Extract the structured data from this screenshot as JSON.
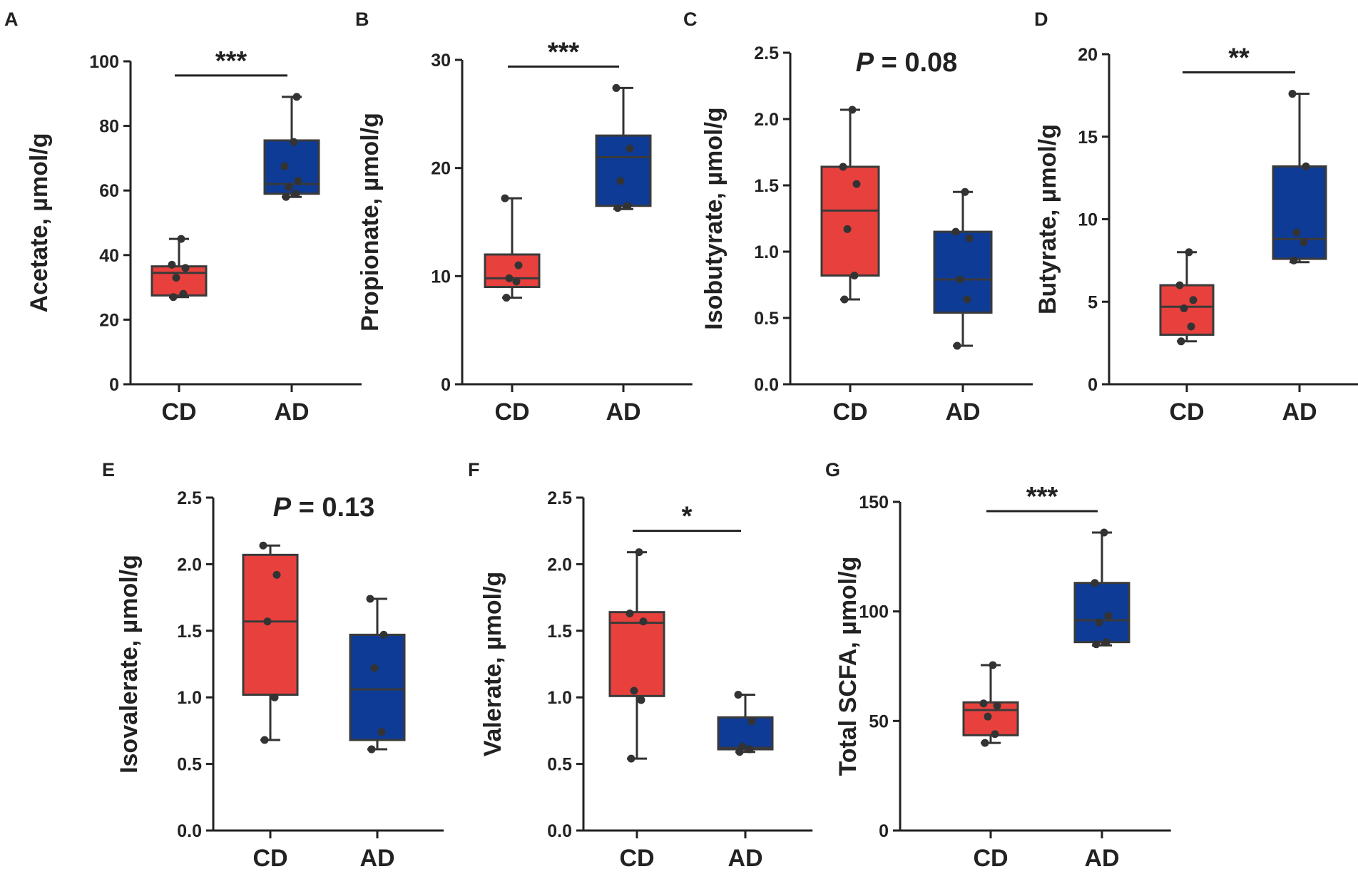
{
  "colors": {
    "CD": "#e8413d",
    "AD": "#0e3b96",
    "ink": "#222222"
  },
  "chart_data": [
    {
      "panel": "A",
      "type": "box",
      "ylabel": "Acetate, µmol/g",
      "ylim": [
        0,
        100
      ],
      "ticks": [
        0,
        20,
        40,
        60,
        80,
        100
      ],
      "tick_labels": [
        "0",
        "20",
        "40",
        "60",
        "80",
        "100"
      ],
      "categories": [
        "CD",
        "AD"
      ],
      "annotation": "***",
      "annotation_style": "bracket",
      "groups": [
        {
          "name": "CD",
          "min": 27,
          "q1": 27.5,
          "median": 34.5,
          "q3": 36.5,
          "max": 45,
          "points": [
            27,
            28,
            33,
            36,
            37,
            45
          ]
        },
        {
          "name": "AD",
          "min": 58,
          "q1": 59,
          "median": 62,
          "q3": 75.5,
          "max": 89,
          "points": [
            58,
            59,
            61,
            63,
            67.5,
            75,
            89
          ]
        }
      ]
    },
    {
      "panel": "B",
      "type": "box",
      "ylabel": "Propionate, µmol/g",
      "ylim": [
        0,
        30
      ],
      "ticks": [
        0,
        10,
        20,
        30
      ],
      "tick_labels": [
        "0",
        "10",
        "20",
        "30"
      ],
      "categories": [
        "CD",
        "AD"
      ],
      "annotation": "***",
      "annotation_style": "bracket",
      "groups": [
        {
          "name": "CD",
          "min": 8,
          "q1": 9,
          "median": 9.8,
          "q3": 12,
          "max": 17.2,
          "points": [
            8,
            9.5,
            9.8,
            11,
            17.2
          ]
        },
        {
          "name": "AD",
          "min": 16.2,
          "q1": 16.5,
          "median": 21,
          "q3": 23,
          "max": 27.4,
          "points": [
            16.3,
            16.5,
            18.8,
            21.8,
            27.4
          ]
        }
      ]
    },
    {
      "panel": "C",
      "type": "box",
      "ylabel": "Isobutyrate, µmol/g",
      "ylim": [
        0,
        2.5
      ],
      "ticks": [
        0,
        0.5,
        1.0,
        1.5,
        2.0,
        2.5
      ],
      "tick_labels": [
        "0.0",
        "0.5",
        "1.0",
        "1.5",
        "2.0",
        "2.5"
      ],
      "categories": [
        "CD",
        "AD"
      ],
      "annotation": "P = 0.08",
      "annotation_style": "text",
      "groups": [
        {
          "name": "CD",
          "min": 0.64,
          "q1": 0.82,
          "median": 1.31,
          "q3": 1.64,
          "max": 2.07,
          "points": [
            0.64,
            0.82,
            1.17,
            1.51,
            1.64,
            2.07
          ]
        },
        {
          "name": "AD",
          "min": 0.29,
          "q1": 0.54,
          "median": 0.79,
          "q3": 1.15,
          "max": 1.45,
          "points": [
            0.29,
            0.64,
            0.79,
            1.1,
            1.15,
            1.45
          ]
        }
      ]
    },
    {
      "panel": "D",
      "type": "box",
      "ylabel": "Butyrate, µmol/g",
      "ylim": [
        0,
        20
      ],
      "ticks": [
        0,
        5,
        10,
        15,
        20
      ],
      "tick_labels": [
        "0",
        "5",
        "10",
        "15",
        "20"
      ],
      "categories": [
        "CD",
        "AD"
      ],
      "annotation": "**",
      "annotation_style": "bracket",
      "groups": [
        {
          "name": "CD",
          "min": 2.6,
          "q1": 3,
          "median": 4.7,
          "q3": 6,
          "max": 8,
          "points": [
            2.6,
            3.5,
            4.6,
            5.1,
            6,
            8
          ]
        },
        {
          "name": "AD",
          "min": 7.4,
          "q1": 7.6,
          "median": 8.8,
          "q3": 13.2,
          "max": 17.6,
          "points": [
            7.5,
            8.6,
            9.2,
            13.2,
            17.6
          ]
        }
      ]
    },
    {
      "panel": "E",
      "type": "box",
      "ylabel": "Isovalerate, µmol/g",
      "ylim": [
        0,
        2.5
      ],
      "ticks": [
        0,
        0.5,
        1.0,
        1.5,
        2.0,
        2.5
      ],
      "tick_labels": [
        "0.0",
        "0.5",
        "1.0",
        "1.5",
        "2.0",
        "2.5"
      ],
      "categories": [
        "CD",
        "AD"
      ],
      "annotation": "P = 0.13",
      "annotation_style": "text",
      "groups": [
        {
          "name": "CD",
          "min": 0.68,
          "q1": 1.02,
          "median": 1.57,
          "q3": 2.07,
          "max": 2.14,
          "points": [
            0.68,
            1.0,
            1.57,
            1.92,
            2.14
          ]
        },
        {
          "name": "AD",
          "min": 0.61,
          "q1": 0.68,
          "median": 1.06,
          "q3": 1.47,
          "max": 1.74,
          "points": [
            0.61,
            0.74,
            1.22,
            1.47,
            1.74
          ]
        }
      ]
    },
    {
      "panel": "F",
      "type": "box",
      "ylabel": "Valerate, µmol/g",
      "ylim": [
        0,
        2.5
      ],
      "ticks": [
        0,
        0.5,
        1.0,
        1.5,
        2.0,
        2.5
      ],
      "tick_labels": [
        "0.0",
        "0.5",
        "1.0",
        "1.5",
        "2.0",
        "2.5"
      ],
      "categories": [
        "CD",
        "AD"
      ],
      "annotation": "*",
      "annotation_style": "bracket",
      "groups": [
        {
          "name": "CD",
          "min": 0.54,
          "q1": 1.01,
          "median": 1.56,
          "q3": 1.64,
          "max": 2.09,
          "points": [
            0.54,
            0.98,
            1.05,
            1.57,
            1.63,
            2.09
          ]
        },
        {
          "name": "AD",
          "min": 0.59,
          "q1": 0.61,
          "median": 0.62,
          "q3": 0.85,
          "max": 1.02,
          "points": [
            0.59,
            0.61,
            0.63,
            0.82,
            1.02
          ]
        }
      ]
    },
    {
      "panel": "G",
      "type": "box",
      "ylabel": "Total SCFA, µmol/g",
      "ylim": [
        0,
        150
      ],
      "ticks": [
        0,
        50,
        100,
        150
      ],
      "tick_labels": [
        "0",
        "50",
        "100",
        "150"
      ],
      "categories": [
        "CD",
        "AD"
      ],
      "annotation": "***",
      "annotation_style": "bracket",
      "groups": [
        {
          "name": "CD",
          "min": 40,
          "q1": 43.5,
          "median": 55,
          "q3": 58.5,
          "max": 75.5,
          "points": [
            40,
            44,
            52,
            57,
            58,
            75.5
          ]
        },
        {
          "name": "AD",
          "min": 84.5,
          "q1": 86,
          "median": 96,
          "q3": 113,
          "max": 136,
          "points": [
            85,
            86,
            95,
            98,
            113,
            136
          ]
        }
      ]
    }
  ]
}
